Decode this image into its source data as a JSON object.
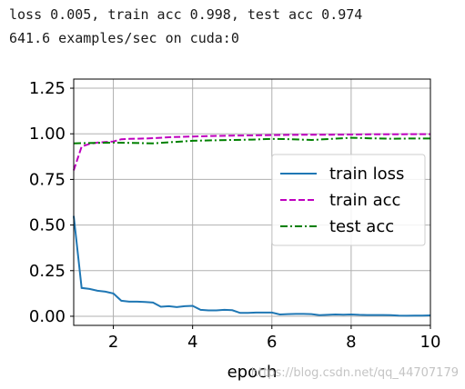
{
  "log": {
    "line1": "loss 0.005, train acc 0.998, test acc 0.974",
    "line2": "641.6 examples/sec on cuda:0"
  },
  "watermark": "https://blog.csdn.net/qq_44707179",
  "chart_data": {
    "type": "line",
    "xlabel": "epoch",
    "ylabel": "",
    "xlim": [
      1,
      10
    ],
    "ylim": [
      -0.05,
      1.3
    ],
    "xticks": [
      2,
      4,
      6,
      8,
      10
    ],
    "yticks": [
      0.0,
      0.25,
      0.5,
      0.75,
      1.0,
      1.25
    ],
    "grid": true,
    "legend_position": "center-right",
    "series": [
      {
        "name": "train loss",
        "color": "#1f77b4",
        "dash": "solid",
        "x": [
          1.0,
          1.2,
          1.4,
          1.6,
          1.8,
          2.0,
          2.2,
          2.4,
          2.6,
          2.8,
          3.0,
          3.2,
          3.4,
          3.6,
          3.8,
          4.0,
          4.2,
          4.4,
          4.6,
          4.8,
          5.0,
          5.2,
          5.4,
          5.6,
          5.8,
          6.0,
          6.2,
          6.4,
          6.6,
          6.8,
          7.0,
          7.2,
          7.4,
          7.6,
          7.8,
          8.0,
          8.2,
          8.4,
          8.6,
          8.8,
          9.0,
          9.2,
          9.4,
          9.6,
          9.8,
          10.0
        ],
        "y": [
          0.55,
          0.155,
          0.15,
          0.14,
          0.135,
          0.125,
          0.085,
          0.08,
          0.08,
          0.078,
          0.075,
          0.052,
          0.055,
          0.05,
          0.055,
          0.057,
          0.035,
          0.032,
          0.032,
          0.035,
          0.033,
          0.018,
          0.018,
          0.02,
          0.02,
          0.02,
          0.01,
          0.012,
          0.013,
          0.013,
          0.012,
          0.006,
          0.008,
          0.01,
          0.009,
          0.01,
          0.008,
          0.007,
          0.007,
          0.007,
          0.006,
          0.004,
          0.003,
          0.004,
          0.004,
          0.005
        ]
      },
      {
        "name": "train acc",
        "color": "#bf00bf",
        "dash": "dashed",
        "x": [
          1.0,
          1.2,
          1.4,
          1.6,
          1.8,
          2.0,
          2.2,
          2.4,
          2.6,
          2.8,
          3.0,
          3.5,
          4.0,
          4.5,
          5.0,
          5.5,
          6.0,
          6.5,
          7.0,
          7.5,
          8.0,
          8.5,
          9.0,
          9.5,
          10.0
        ],
        "y": [
          0.8,
          0.93,
          0.945,
          0.952,
          0.955,
          0.958,
          0.97,
          0.972,
          0.973,
          0.974,
          0.976,
          0.982,
          0.985,
          0.988,
          0.99,
          0.991,
          0.993,
          0.994,
          0.995,
          0.995,
          0.996,
          0.997,
          0.997,
          0.998,
          0.998
        ]
      },
      {
        "name": "test acc",
        "color": "#008000",
        "dash": "dashdot",
        "x": [
          1.0,
          2.0,
          3.0,
          3.5,
          4.0,
          4.5,
          5.0,
          5.5,
          6.0,
          6.5,
          7.0,
          7.5,
          8.0,
          8.5,
          9.0,
          9.5,
          10.0
        ],
        "y": [
          0.948,
          0.952,
          0.948,
          0.955,
          0.962,
          0.964,
          0.966,
          0.968,
          0.972,
          0.97,
          0.966,
          0.972,
          0.978,
          0.975,
          0.973,
          0.974,
          0.974
        ]
      }
    ]
  }
}
